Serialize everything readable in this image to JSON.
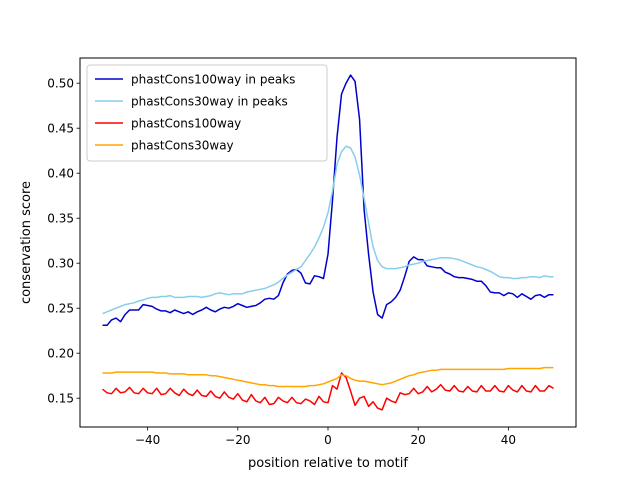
{
  "chart_data": {
    "type": "line",
    "title": "",
    "xlabel": "position relative to motif",
    "ylabel": "conservation score",
    "xlim": [
      -55,
      55
    ],
    "ylim": [
      0.118,
      0.528
    ],
    "xticks": [
      -40,
      -20,
      0,
      20,
      40
    ],
    "xtick_labels": [
      "−40",
      "−20",
      "0",
      "20",
      "40"
    ],
    "yticks": [
      0.15,
      0.2,
      0.25,
      0.3,
      0.35,
      0.4,
      0.45,
      0.5
    ],
    "ytick_labels": [
      "0.15",
      "0.20",
      "0.25",
      "0.30",
      "0.35",
      "0.40",
      "0.45",
      "0.50"
    ],
    "grid": false,
    "legend_position": "upper-left",
    "series": [
      {
        "name": "phastCons100way in peaks",
        "color": "#0000cd",
        "x": [
          -50,
          -49,
          -48,
          -47,
          -46,
          -45,
          -44,
          -43,
          -42,
          -41,
          -40,
          -39,
          -38,
          -37,
          -36,
          -35,
          -34,
          -33,
          -32,
          -31,
          -30,
          -29,
          -28,
          -27,
          -26,
          -25,
          -24,
          -23,
          -22,
          -21,
          -20,
          -19,
          -18,
          -17,
          -16,
          -15,
          -14,
          -13,
          -12,
          -11,
          -10,
          -9,
          -8,
          -7,
          -6,
          -5,
          -4,
          -3,
          -2,
          -1,
          0,
          1,
          2,
          3,
          4,
          5,
          6,
          7,
          8,
          9,
          10,
          11,
          12,
          13,
          14,
          15,
          16,
          17,
          18,
          19,
          20,
          21,
          22,
          23,
          24,
          25,
          26,
          27,
          28,
          29,
          30,
          31,
          32,
          33,
          34,
          35,
          36,
          37,
          38,
          39,
          40,
          41,
          42,
          43,
          44,
          45,
          46,
          47,
          48,
          49,
          50
        ],
        "y": [
          0.231,
          0.231,
          0.237,
          0.239,
          0.235,
          0.243,
          0.248,
          0.248,
          0.248,
          0.254,
          0.253,
          0.252,
          0.249,
          0.247,
          0.247,
          0.245,
          0.248,
          0.246,
          0.244,
          0.246,
          0.243,
          0.246,
          0.248,
          0.251,
          0.248,
          0.246,
          0.249,
          0.251,
          0.25,
          0.252,
          0.255,
          0.253,
          0.251,
          0.252,
          0.253,
          0.256,
          0.26,
          0.261,
          0.26,
          0.264,
          0.278,
          0.288,
          0.292,
          0.293,
          0.289,
          0.278,
          0.277,
          0.286,
          0.285,
          0.283,
          0.31,
          0.37,
          0.44,
          0.488,
          0.5,
          0.509,
          0.502,
          0.46,
          0.36,
          0.31,
          0.268,
          0.243,
          0.239,
          0.254,
          0.257,
          0.262,
          0.27,
          0.285,
          0.302,
          0.307,
          0.304,
          0.304,
          0.297,
          0.296,
          0.295,
          0.295,
          0.29,
          0.288,
          0.285,
          0.284,
          0.284,
          0.283,
          0.282,
          0.28,
          0.28,
          0.275,
          0.268,
          0.267,
          0.267,
          0.264,
          0.267,
          0.266,
          0.262,
          0.266,
          0.263,
          0.26,
          0.264,
          0.265,
          0.262,
          0.265,
          0.265
        ]
      },
      {
        "name": "phastCons30way in peaks",
        "color": "#87ceeb",
        "x": [
          -50,
          -49,
          -48,
          -47,
          -46,
          -45,
          -44,
          -43,
          -42,
          -41,
          -40,
          -39,
          -38,
          -37,
          -36,
          -35,
          -34,
          -33,
          -32,
          -31,
          -30,
          -29,
          -28,
          -27,
          -26,
          -25,
          -24,
          -23,
          -22,
          -21,
          -20,
          -19,
          -18,
          -17,
          -16,
          -15,
          -14,
          -13,
          -12,
          -11,
          -10,
          -9,
          -8,
          -7,
          -6,
          -5,
          -4,
          -3,
          -2,
          -1,
          0,
          1,
          2,
          3,
          4,
          5,
          6,
          7,
          8,
          9,
          10,
          11,
          12,
          13,
          14,
          15,
          16,
          17,
          18,
          19,
          20,
          21,
          22,
          23,
          24,
          25,
          26,
          27,
          28,
          29,
          30,
          31,
          32,
          33,
          34,
          35,
          36,
          37,
          38,
          39,
          40,
          41,
          42,
          43,
          44,
          45,
          46,
          47,
          48,
          49,
          50
        ],
        "y": [
          0.244,
          0.246,
          0.248,
          0.25,
          0.252,
          0.254,
          0.255,
          0.256,
          0.258,
          0.259,
          0.261,
          0.262,
          0.262,
          0.263,
          0.263,
          0.264,
          0.262,
          0.262,
          0.262,
          0.263,
          0.263,
          0.263,
          0.262,
          0.263,
          0.264,
          0.266,
          0.267,
          0.266,
          0.265,
          0.266,
          0.266,
          0.266,
          0.268,
          0.269,
          0.27,
          0.271,
          0.272,
          0.274,
          0.276,
          0.279,
          0.283,
          0.287,
          0.29,
          0.293,
          0.296,
          0.303,
          0.31,
          0.318,
          0.328,
          0.34,
          0.356,
          0.38,
          0.41,
          0.424,
          0.43,
          0.428,
          0.418,
          0.398,
          0.372,
          0.345,
          0.318,
          0.303,
          0.296,
          0.294,
          0.294,
          0.294,
          0.295,
          0.296,
          0.298,
          0.299,
          0.3,
          0.302,
          0.303,
          0.304,
          0.305,
          0.306,
          0.306,
          0.306,
          0.305,
          0.304,
          0.302,
          0.3,
          0.298,
          0.296,
          0.295,
          0.293,
          0.291,
          0.288,
          0.285,
          0.284,
          0.284,
          0.283,
          0.283,
          0.284,
          0.284,
          0.285,
          0.285,
          0.284,
          0.286,
          0.285,
          0.285
        ]
      },
      {
        "name": "phastCons100way",
        "color": "#ff0000",
        "x": [
          -50,
          -49,
          -48,
          -47,
          -46,
          -45,
          -44,
          -43,
          -42,
          -41,
          -40,
          -39,
          -38,
          -37,
          -36,
          -35,
          -34,
          -33,
          -32,
          -31,
          -30,
          -29,
          -28,
          -27,
          -26,
          -25,
          -24,
          -23,
          -22,
          -21,
          -20,
          -19,
          -18,
          -17,
          -16,
          -15,
          -14,
          -13,
          -12,
          -11,
          -10,
          -9,
          -8,
          -7,
          -6,
          -5,
          -4,
          -3,
          -2,
          -1,
          0,
          1,
          2,
          3,
          4,
          5,
          6,
          7,
          8,
          9,
          10,
          11,
          12,
          13,
          14,
          15,
          16,
          17,
          18,
          19,
          20,
          21,
          22,
          23,
          24,
          25,
          26,
          27,
          28,
          29,
          30,
          31,
          32,
          33,
          34,
          35,
          36,
          37,
          38,
          39,
          40,
          41,
          42,
          43,
          44,
          45,
          46,
          47,
          48,
          49,
          50
        ],
        "y": [
          0.16,
          0.156,
          0.155,
          0.161,
          0.156,
          0.157,
          0.162,
          0.156,
          0.155,
          0.161,
          0.156,
          0.155,
          0.161,
          0.154,
          0.155,
          0.161,
          0.156,
          0.153,
          0.16,
          0.155,
          0.153,
          0.159,
          0.153,
          0.152,
          0.158,
          0.152,
          0.15,
          0.157,
          0.151,
          0.149,
          0.155,
          0.148,
          0.146,
          0.154,
          0.147,
          0.145,
          0.151,
          0.143,
          0.144,
          0.151,
          0.147,
          0.145,
          0.151,
          0.145,
          0.144,
          0.149,
          0.147,
          0.143,
          0.152,
          0.146,
          0.145,
          0.164,
          0.16,
          0.178,
          0.173,
          0.158,
          0.142,
          0.15,
          0.152,
          0.141,
          0.146,
          0.139,
          0.137,
          0.15,
          0.147,
          0.145,
          0.156,
          0.154,
          0.155,
          0.161,
          0.155,
          0.157,
          0.163,
          0.157,
          0.16,
          0.165,
          0.159,
          0.158,
          0.164,
          0.158,
          0.157,
          0.163,
          0.158,
          0.157,
          0.164,
          0.158,
          0.158,
          0.164,
          0.158,
          0.157,
          0.164,
          0.159,
          0.157,
          0.164,
          0.158,
          0.157,
          0.164,
          0.158,
          0.158,
          0.164,
          0.161
        ]
      },
      {
        "name": "phastCons30way",
        "color": "#ffa500",
        "x": [
          -50,
          -49,
          -48,
          -47,
          -46,
          -45,
          -44,
          -43,
          -42,
          -41,
          -40,
          -39,
          -38,
          -37,
          -36,
          -35,
          -34,
          -33,
          -32,
          -31,
          -30,
          -29,
          -28,
          -27,
          -26,
          -25,
          -24,
          -23,
          -22,
          -21,
          -20,
          -19,
          -18,
          -17,
          -16,
          -15,
          -14,
          -13,
          -12,
          -11,
          -10,
          -9,
          -8,
          -7,
          -6,
          -5,
          -4,
          -3,
          -2,
          -1,
          0,
          1,
          2,
          3,
          4,
          5,
          6,
          7,
          8,
          9,
          10,
          11,
          12,
          13,
          14,
          15,
          16,
          17,
          18,
          19,
          20,
          21,
          22,
          23,
          24,
          25,
          26,
          27,
          28,
          29,
          30,
          31,
          32,
          33,
          34,
          35,
          36,
          37,
          38,
          39,
          40,
          41,
          42,
          43,
          44,
          45,
          46,
          47,
          48,
          49,
          50
        ],
        "y": [
          0.178,
          0.178,
          0.178,
          0.179,
          0.179,
          0.179,
          0.179,
          0.179,
          0.179,
          0.179,
          0.179,
          0.179,
          0.178,
          0.178,
          0.178,
          0.177,
          0.177,
          0.177,
          0.177,
          0.176,
          0.176,
          0.176,
          0.176,
          0.176,
          0.175,
          0.175,
          0.174,
          0.173,
          0.172,
          0.171,
          0.17,
          0.169,
          0.168,
          0.167,
          0.166,
          0.165,
          0.165,
          0.164,
          0.164,
          0.163,
          0.163,
          0.163,
          0.163,
          0.163,
          0.163,
          0.163,
          0.164,
          0.164,
          0.165,
          0.166,
          0.168,
          0.17,
          0.172,
          0.176,
          0.175,
          0.172,
          0.17,
          0.169,
          0.169,
          0.168,
          0.167,
          0.166,
          0.165,
          0.166,
          0.167,
          0.169,
          0.171,
          0.173,
          0.175,
          0.176,
          0.178,
          0.179,
          0.18,
          0.181,
          0.181,
          0.182,
          0.182,
          0.182,
          0.182,
          0.182,
          0.182,
          0.182,
          0.182,
          0.182,
          0.182,
          0.182,
          0.182,
          0.182,
          0.182,
          0.182,
          0.183,
          0.183,
          0.183,
          0.183,
          0.183,
          0.183,
          0.183,
          0.183,
          0.184,
          0.184,
          0.184
        ]
      }
    ]
  }
}
